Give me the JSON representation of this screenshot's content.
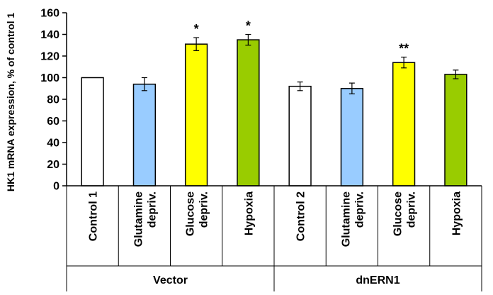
{
  "chart_data": {
    "type": "bar",
    "ylabel": "HK1 mRNA expression, % of control 1",
    "ylim": [
      0,
      160
    ],
    "yticks": [
      0,
      20,
      40,
      60,
      80,
      100,
      120,
      140,
      160
    ],
    "grid": false,
    "legend": "none",
    "groups": [
      {
        "label": "Vector",
        "bars": [
          {
            "category": "Control 1",
            "value": 100,
            "error": 0,
            "color": "#ffffff",
            "significance": ""
          },
          {
            "category": "Glutamine depriv.",
            "value": 94,
            "error": 6,
            "color": "#99ccff",
            "significance": ""
          },
          {
            "category": "Glucose depriv.",
            "value": 131,
            "error": 6,
            "color": "#ffff00",
            "significance": "*"
          },
          {
            "category": "Hypoxia",
            "value": 135,
            "error": 5,
            "color": "#99cc00",
            "significance": "*"
          }
        ]
      },
      {
        "label": "dnERN1",
        "bars": [
          {
            "category": "Control 2",
            "value": 92,
            "error": 4,
            "color": "#ffffff",
            "significance": ""
          },
          {
            "category": "Glutamine depriv.",
            "value": 90,
            "error": 5,
            "color": "#99ccff",
            "significance": ""
          },
          {
            "category": "Glucose depriv.",
            "value": 114,
            "error": 5,
            "color": "#ffff00",
            "significance": "**"
          },
          {
            "category": "Hypoxia",
            "value": 103,
            "error": 4,
            "color": "#99cc00",
            "significance": ""
          }
        ]
      }
    ]
  }
}
